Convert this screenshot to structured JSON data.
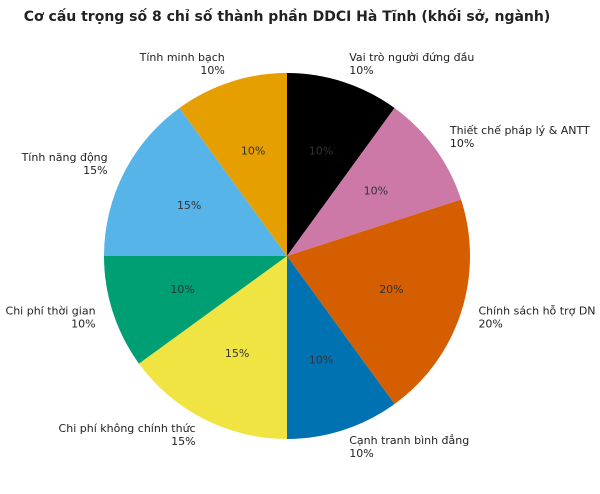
{
  "chart_data": {
    "type": "pie",
    "title": "Cơ cấu trọng số 8 chỉ số thành phần DDCI Hà Tĩnh (khối sở, ngành)",
    "categories": [
      "Vai trò người đứng đầu",
      "Thiết chế pháp lý & ANTT",
      "Chính sách hỗ trợ DN",
      "Cạnh tranh bình đẳng",
      "Chi phí không chính thức",
      "Chi phí thời gian",
      "Tính năng động",
      "Tính minh bạch"
    ],
    "values": [
      10,
      10,
      20,
      10,
      15,
      10,
      15,
      10
    ],
    "value_labels": [
      "10%",
      "10%",
      "20%",
      "10%",
      "15%",
      "10%",
      "15%",
      "10%"
    ],
    "colors": [
      "#000000",
      "#CC79A7",
      "#D55E00",
      "#0072B2",
      "#F0E442",
      "#009E73",
      "#56B4E9",
      "#E69F00"
    ],
    "start_angle": 90,
    "direction": "clockwise"
  }
}
